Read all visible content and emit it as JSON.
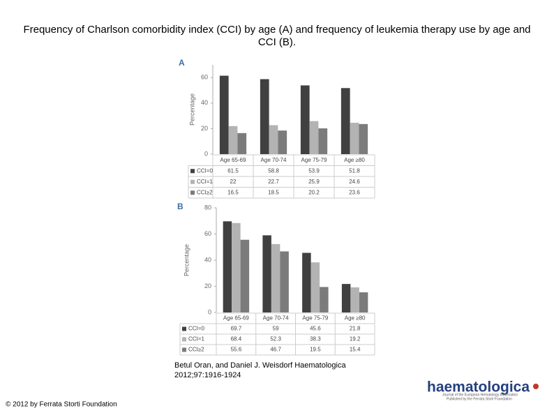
{
  "title": "Frequency of Charlson comorbidity index (CCI) by age (A) and frequency of leukemia therapy use by age and CCI (B).",
  "citation": [
    "Betul Oran, and Daniel J. Weisdorf Haematologica",
    "2012;97:1916-1924"
  ],
  "copyright": "© 2012 by Ferrata Storti Foundation",
  "logo": {
    "name": "haematologica",
    "tagline": [
      "Journal of the European Hematology Association",
      "Published by the Ferrata Storti Foundation"
    ]
  },
  "chart_data": [
    {
      "type": "bar",
      "panel": "A",
      "y_label": "Percentage",
      "categories": [
        "Age 65-69",
        "Age 70-74",
        "Age 75-79",
        "Age ≥80"
      ],
      "series": [
        {
          "name": "CCI=0",
          "color": "#404040",
          "values": [
            61.5,
            58.8,
            53.9,
            51.8
          ]
        },
        {
          "name": "CCI=1",
          "color": "#b3b3b3",
          "values": [
            22,
            22.7,
            25.9,
            24.6
          ]
        },
        {
          "name": "CCI≥2",
          "color": "#7b7b7b",
          "values": [
            16.5,
            18.5,
            20.2,
            23.6
          ]
        }
      ],
      "ylim": [
        0,
        70
      ],
      "yticks": [
        0,
        20,
        40,
        60
      ]
    },
    {
      "type": "bar",
      "panel": "B",
      "y_label": "Percentage",
      "categories": [
        "Age 65-69",
        "Age 70-74",
        "Age 75-79",
        "Age ≥80"
      ],
      "series": [
        {
          "name": "CCI=0",
          "color": "#404040",
          "values": [
            69.7,
            59,
            45.6,
            21.8
          ]
        },
        {
          "name": "CCI=1",
          "color": "#b3b3b3",
          "values": [
            68.4,
            52.3,
            38.3,
            19.2
          ]
        },
        {
          "name": "CCI≥2",
          "color": "#7b7b7b",
          "values": [
            55.6,
            46.7,
            19.5,
            15.4
          ]
        }
      ],
      "ylim": [
        0,
        80
      ],
      "yticks": [
        0,
        20,
        40,
        60,
        80
      ]
    }
  ]
}
